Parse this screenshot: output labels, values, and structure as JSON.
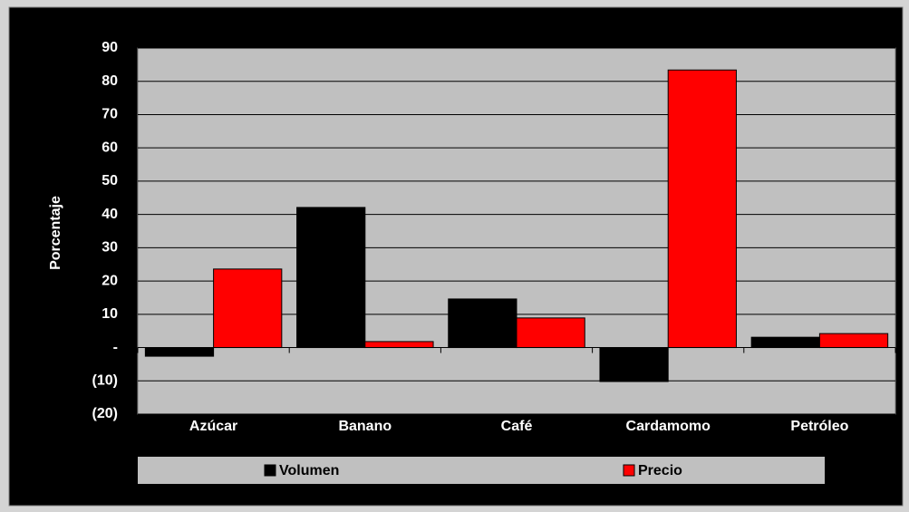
{
  "chart_data": {
    "type": "bar",
    "y_label": "Porcentaje",
    "categories": [
      "Azúcar",
      "Banano",
      "Café",
      "Cardamomo",
      "Petróleo"
    ],
    "series": [
      {
        "name": "Volumen",
        "color": "#000000",
        "values": [
          -2.6,
          42.1,
          14.6,
          -10.2,
          3.1
        ]
      },
      {
        "name": "Precio",
        "color": "#ff0000",
        "values": [
          23.6,
          1.8,
          8.9,
          83.4,
          4.2
        ]
      }
    ],
    "ylim": [
      -20,
      90
    ],
    "yticks": [
      {
        "value": -20,
        "label": "(20)"
      },
      {
        "value": -10,
        "label": "(10)"
      },
      {
        "value": 0,
        "label": "-"
      },
      10,
      20,
      30,
      40,
      50,
      60,
      70,
      80,
      90
    ],
    "grid": true,
    "legend": "bottom"
  }
}
